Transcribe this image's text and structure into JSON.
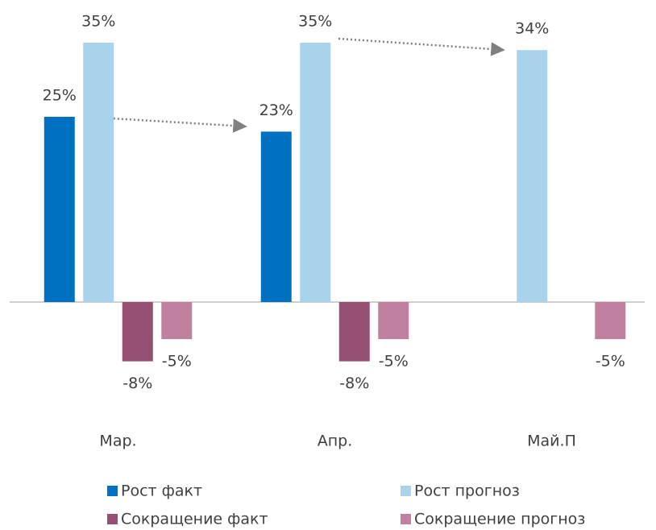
{
  "chart_data": {
    "type": "bar",
    "categories": [
      "Мар.",
      "Апр.",
      "Май.П"
    ],
    "series": [
      {
        "name": "Рост факт",
        "color": "#0070c0",
        "values": [
          25,
          23,
          null
        ],
        "value_labels": [
          "25%",
          "23%",
          null
        ]
      },
      {
        "name": "Рост прогноз",
        "color": "#a9d3ea",
        "values": [
          35,
          35,
          34
        ],
        "value_labels": [
          "35%",
          "35%",
          "34%"
        ]
      },
      {
        "name": "Сокращение факт",
        "color": "#954f72",
        "values": [
          -8,
          -8,
          null
        ],
        "value_labels": [
          "-8%",
          "-8%",
          null
        ]
      },
      {
        "name": "Сокращение прогноз",
        "color": "#c080a0",
        "values": [
          -5,
          -5,
          -5
        ],
        "value_labels": [
          "-5%",
          "-5%",
          "-5%"
        ]
      }
    ],
    "ylim": [
      -12,
      36
    ]
  }
}
